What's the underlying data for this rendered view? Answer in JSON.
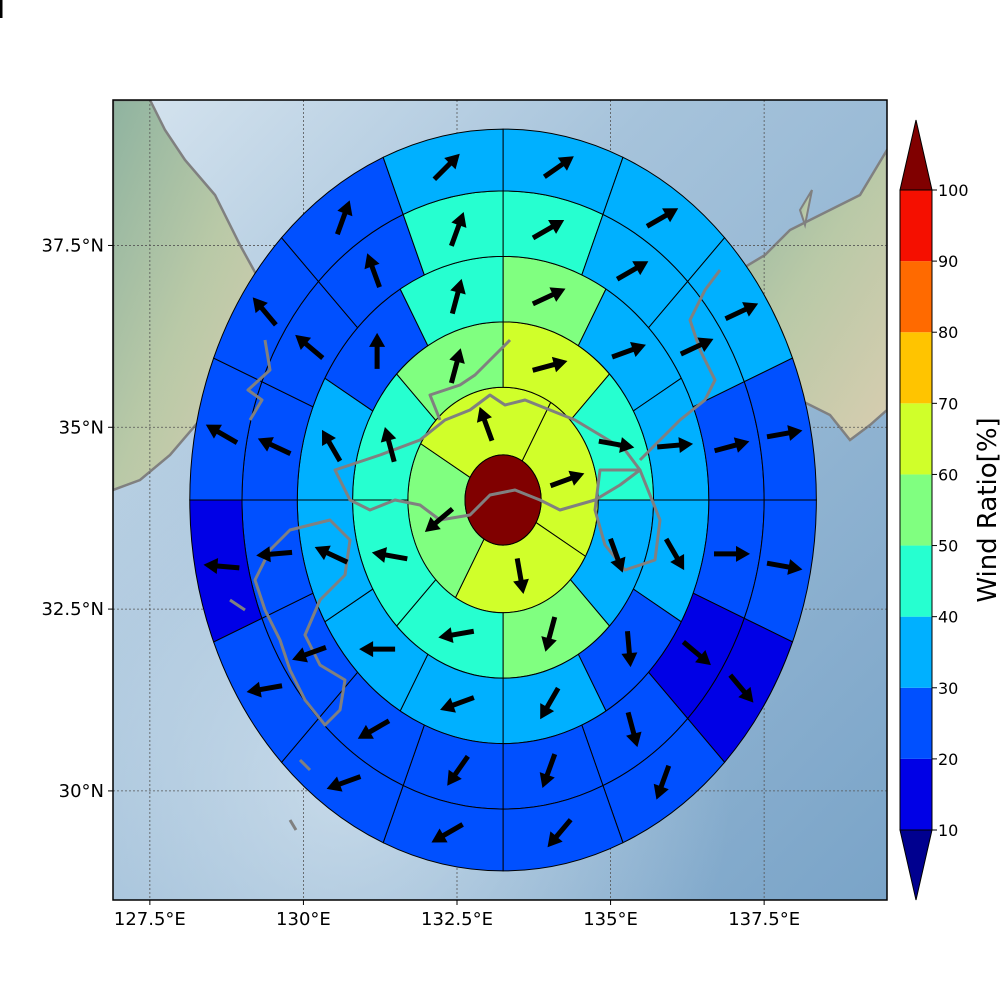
{
  "chart_data": {
    "type": "polar-sector-map",
    "xlim": [
      126.9,
      139.5
    ],
    "ylim": [
      28.5,
      39.5
    ],
    "x_ticks": [
      {
        "value": 127.5,
        "label": "127.5°E"
      },
      {
        "value": 130,
        "label": "130°E"
      },
      {
        "value": 132.5,
        "label": "132.5°E"
      },
      {
        "value": 135,
        "label": "135°E"
      },
      {
        "value": 137.5,
        "label": "137.5°E"
      }
    ],
    "y_ticks": [
      {
        "value": 30,
        "label": "30°N"
      },
      {
        "value": 32.5,
        "label": "32.5°N"
      },
      {
        "value": 35,
        "label": "35°N"
      },
      {
        "value": 37.5,
        "label": "37.5°N"
      }
    ],
    "grid": true,
    "center": {
      "lon": 133.25,
      "lat": 34.0,
      "value": 100
    },
    "ring_radii_deg": [
      0.62,
      1.55,
      2.45,
      3.35,
      4.25,
      5.1
    ],
    "rings": [
      {
        "sectors": 4,
        "start_bearing": 30,
        "values": [
          65,
          60,
          55,
          60
        ],
        "arrows": [
          70,
          170,
          230,
          340
        ]
      },
      {
        "sectors": 8,
        "start_bearing": 0,
        "values": [
          60,
          45,
          35,
          50,
          45,
          40,
          40,
          55
        ],
        "arrows": [
          75,
          100,
          160,
          195,
          260,
          280,
          345,
          15
        ]
      },
      {
        "sectors": 12,
        "start_bearing": 0,
        "values": [
          50,
          35,
          30,
          30,
          25,
          30,
          30,
          30,
          30,
          35,
          25,
          45
        ],
        "arrows": [
          65,
          70,
          85,
          150,
          175,
          210,
          250,
          270,
          295,
          330,
          0,
          15
        ]
      },
      {
        "sectors": 16,
        "start_bearing": 0,
        "values": [
          40,
          35,
          30,
          25,
          25,
          15,
          20,
          20,
          20,
          20,
          25,
          20,
          25,
          25,
          20,
          40
        ],
        "arrows": [
          60,
          60,
          65,
          75,
          90,
          130,
          165,
          200,
          215,
          240,
          250,
          265,
          295,
          310,
          340,
          20
        ]
      },
      {
        "sectors": 16,
        "start_bearing": 0,
        "values": [
          35,
          30,
          30,
          25,
          25,
          15,
          20,
          20,
          20,
          20,
          20,
          15,
          20,
          20,
          25,
          30
        ],
        "arrows": [
          55,
          60,
          65,
          80,
          100,
          140,
          200,
          220,
          240,
          250,
          260,
          275,
          300,
          320,
          20,
          45
        ]
      },
      {
        "sectors": 16,
        "start_bearing": 0,
        "values": [
          30,
          30,
          25,
          30,
          25,
          15,
          15,
          20,
          15,
          20,
          15,
          20,
          20,
          15,
          20,
          25
        ],
        "arrows": [
          60,
          65,
          85,
          110,
          140,
          180,
          225,
          250,
          260,
          255,
          275,
          290,
          310,
          330,
          35,
          55
        ]
      }
    ],
    "colorbar": {
      "label": "Wind Ratio[%]",
      "ticks": [
        "10",
        "20",
        "30",
        "40",
        "50",
        "60",
        "70",
        "80",
        "90",
        "100"
      ],
      "under_color": "#00008f",
      "over_color": "#800000",
      "bins": [
        {
          "min": 10,
          "max": 20,
          "color": "#0000e6"
        },
        {
          "min": 20,
          "max": 30,
          "color": "#0050ff"
        },
        {
          "min": 30,
          "max": 40,
          "color": "#00b0ff"
        },
        {
          "min": 40,
          "max": 50,
          "color": "#26ffd0"
        },
        {
          "min": 50,
          "max": 60,
          "color": "#80ff80"
        },
        {
          "min": 60,
          "max": 70,
          "color": "#d0ff2a"
        },
        {
          "min": 70,
          "max": 80,
          "color": "#ffc400"
        },
        {
          "min": 80,
          "max": 90,
          "color": "#ff6a00"
        },
        {
          "min": 90,
          "max": 100,
          "color": "#f50f00"
        }
      ]
    }
  }
}
